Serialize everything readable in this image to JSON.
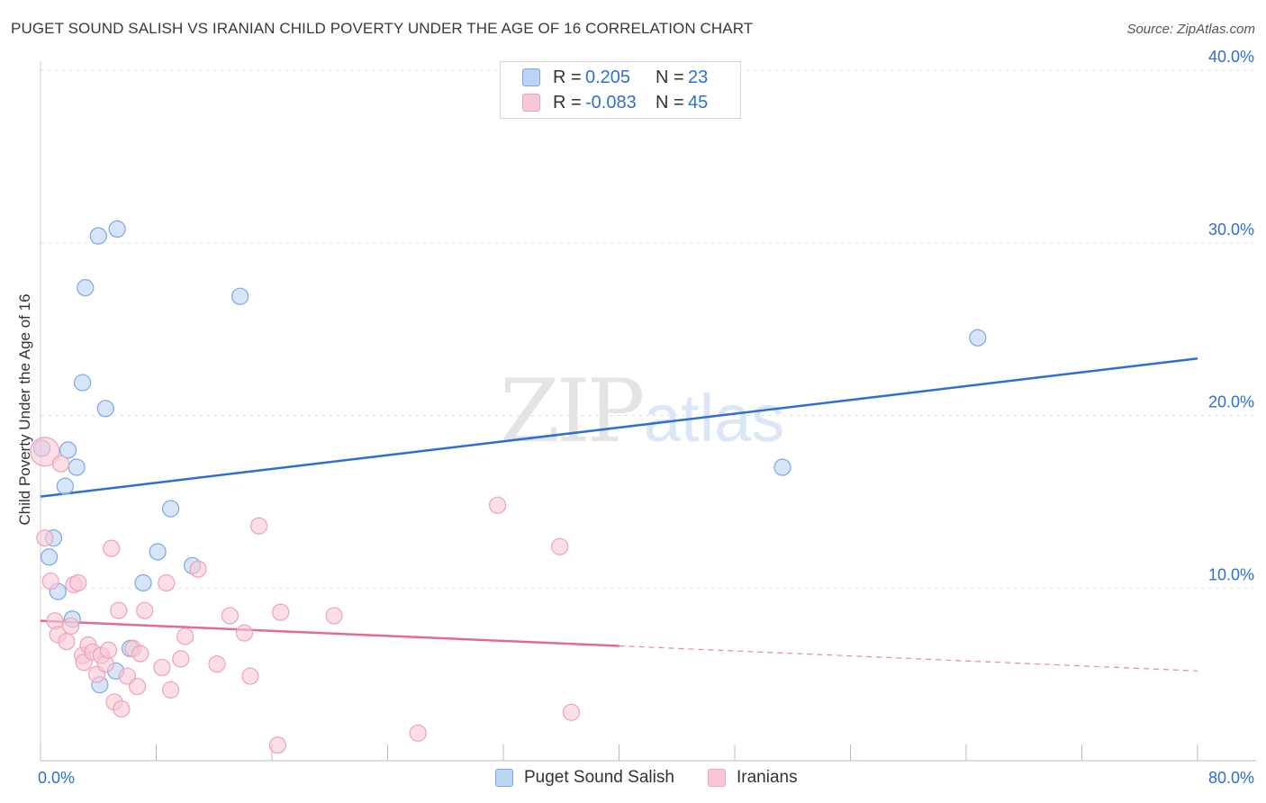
{
  "chart_data": {
    "type": "scatter",
    "title": "PUGET SOUND SALISH VS IRANIAN CHILD POVERTY UNDER THE AGE OF 16 CORRELATION CHART",
    "source": "Source: ZipAtlas.com",
    "ylabel": "Child Poverty Under the Age of 16",
    "xlim": [
      0,
      80
    ],
    "ylim": [
      0,
      40
    ],
    "x_tick_labels": [
      "0.0%",
      "80.0%"
    ],
    "y_ticks": [
      10,
      20,
      30,
      40
    ],
    "y_tick_labels": [
      "10.0%",
      "20.0%",
      "30.0%",
      "40.0%"
    ],
    "watermark": {
      "zip": "ZIP",
      "atlas": "atlas"
    },
    "legend": [
      {
        "r_label": "R =",
        "r_value": "0.205",
        "n_label": "N =",
        "n_value": "23"
      },
      {
        "r_label": "R =",
        "r_value": "-0.083",
        "n_label": "N =",
        "n_value": "45"
      }
    ],
    "series": [
      {
        "name": "Puget Sound Salish",
        "color": "#2f6fd0",
        "fill": "#bcd3f5",
        "stroke": "#7ea6e3",
        "trend": {
          "x0": 0,
          "y0": 15.3,
          "x1": 80,
          "y1": 23.3,
          "dashed_from": null
        },
        "points": [
          [
            0.1,
            18.1
          ],
          [
            0.6,
            11.8
          ],
          [
            0.9,
            12.9
          ],
          [
            1.2,
            9.8
          ],
          [
            1.7,
            15.9
          ],
          [
            1.9,
            18.0
          ],
          [
            2.2,
            8.2
          ],
          [
            2.5,
            17.0
          ],
          [
            2.9,
            21.9
          ],
          [
            3.1,
            27.4
          ],
          [
            4.0,
            30.4
          ],
          [
            4.1,
            4.4
          ],
          [
            4.5,
            20.4
          ],
          [
            5.2,
            5.2
          ],
          [
            5.3,
            30.8
          ],
          [
            6.2,
            6.5
          ],
          [
            7.1,
            10.3
          ],
          [
            8.1,
            12.1
          ],
          [
            9.0,
            14.6
          ],
          [
            10.5,
            11.3
          ],
          [
            13.8,
            26.9
          ],
          [
            51.3,
            17.0
          ],
          [
            64.8,
            24.5
          ]
        ]
      },
      {
        "name": "Iranians",
        "color": "#e36a93",
        "fill": "#f8c8d6",
        "stroke": "#eea2bb",
        "trend": {
          "x0": 0,
          "y0": 8.1,
          "x1": 80,
          "y1": 5.2,
          "dashed_from": 40
        },
        "points": [
          [
            0.3,
            17.9
          ],
          [
            0.3,
            12.9
          ],
          [
            0.7,
            10.4
          ],
          [
            1.0,
            8.1
          ],
          [
            1.2,
            7.3
          ],
          [
            1.4,
            17.2
          ],
          [
            1.8,
            6.9
          ],
          [
            2.1,
            7.8
          ],
          [
            2.3,
            10.2
          ],
          [
            2.6,
            10.3
          ],
          [
            2.9,
            6.1
          ],
          [
            3.0,
            5.7
          ],
          [
            3.3,
            6.7
          ],
          [
            3.6,
            6.3
          ],
          [
            3.9,
            5.0
          ],
          [
            4.2,
            6.1
          ],
          [
            4.5,
            5.6
          ],
          [
            4.7,
            6.4
          ],
          [
            4.9,
            12.3
          ],
          [
            5.1,
            3.4
          ],
          [
            5.4,
            8.7
          ],
          [
            5.6,
            3.0
          ],
          [
            6.0,
            4.9
          ],
          [
            6.4,
            6.5
          ],
          [
            6.7,
            4.3
          ],
          [
            6.9,
            6.2
          ],
          [
            7.2,
            8.7
          ],
          [
            8.4,
            5.4
          ],
          [
            8.7,
            10.3
          ],
          [
            9.0,
            4.1
          ],
          [
            9.7,
            5.9
          ],
          [
            10.0,
            7.2
          ],
          [
            10.9,
            11.1
          ],
          [
            12.2,
            5.6
          ],
          [
            13.1,
            8.4
          ],
          [
            14.1,
            7.4
          ],
          [
            14.5,
            4.9
          ],
          [
            15.1,
            13.6
          ],
          [
            16.4,
            0.9
          ],
          [
            16.6,
            8.6
          ],
          [
            20.3,
            8.4
          ],
          [
            26.1,
            1.6
          ],
          [
            31.6,
            14.8
          ],
          [
            35.9,
            12.4
          ],
          [
            36.7,
            2.8
          ]
        ]
      }
    ]
  }
}
